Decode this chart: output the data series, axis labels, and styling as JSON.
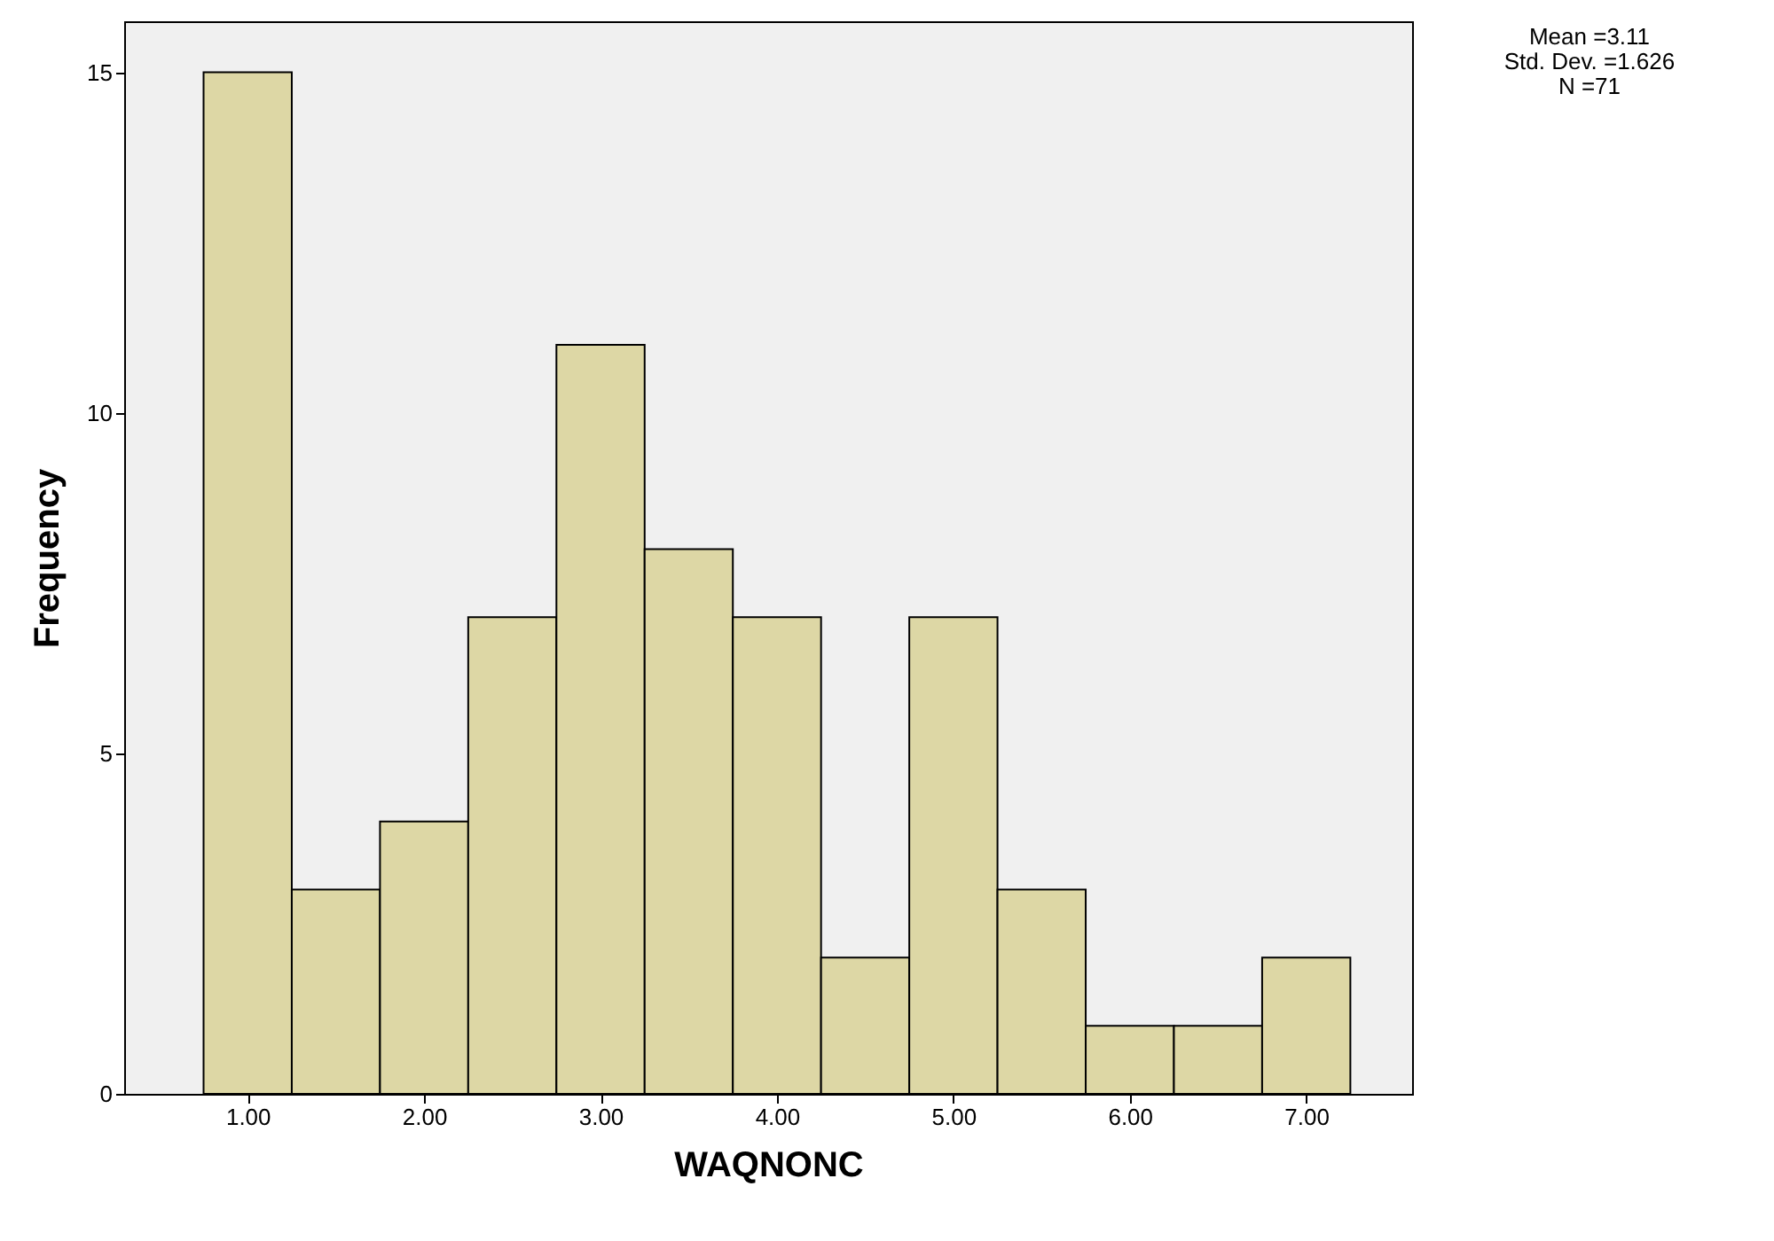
{
  "chart_data": {
    "type": "histogram",
    "xlabel": "WAQNONC",
    "ylabel": "Frequency",
    "bins": [
      0.75,
      1.25,
      1.75,
      2.25,
      2.75,
      3.25,
      3.75,
      4.25,
      4.75,
      5.25,
      5.75,
      6.25,
      6.75,
      7.25
    ],
    "values": [
      15,
      3,
      4,
      7,
      11,
      8,
      7,
      2,
      7,
      3,
      1,
      1,
      2
    ],
    "color": "#ddd7a5",
    "xlim": [
      0.3,
      7.6
    ],
    "xticks": [
      {
        "value": 1,
        "label": "1.00"
      },
      {
        "value": 2,
        "label": "2.00"
      },
      {
        "value": 3,
        "label": "3.00"
      },
      {
        "value": 4,
        "label": "4.00"
      },
      {
        "value": 5,
        "label": "5.00"
      },
      {
        "value": 6,
        "label": "6.00"
      },
      {
        "value": 7,
        "label": "7.00"
      }
    ],
    "ylim": [
      0,
      15.75
    ],
    "yticks": [
      0,
      5,
      10,
      15
    ],
    "grid": false,
    "annotations": [
      "Mean =3.11",
      "Std. Dev. =1.626",
      "N =71"
    ]
  }
}
